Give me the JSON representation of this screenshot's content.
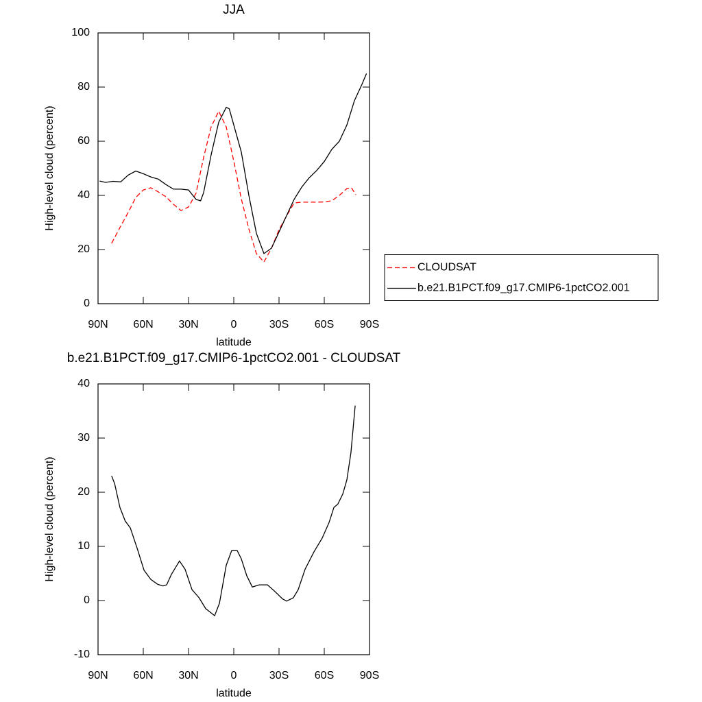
{
  "chart_data": [
    {
      "type": "line",
      "title": "JJA",
      "xlabel": "latitude",
      "ylabel": "High-level cloud (percent)",
      "xlim": [
        90,
        -90
      ],
      "xticks": [
        {
          "value": 90,
          "label": "90N"
        },
        {
          "value": 60,
          "label": "60N"
        },
        {
          "value": 30,
          "label": "30N"
        },
        0,
        {
          "value": -30,
          "label": "30S"
        },
        {
          "value": -60,
          "label": "60S"
        },
        {
          "value": -90,
          "label": "90S"
        }
      ],
      "ylim": [
        0,
        100
      ],
      "yticks": [
        0,
        20,
        40,
        60,
        80,
        100
      ],
      "legend": "right",
      "series": [
        {
          "name": "CLOUDSAT",
          "color": "#ff0000",
          "dash": "dashed",
          "x": [
            81,
            75,
            70,
            65,
            60,
            55,
            50,
            45,
            40,
            35,
            30,
            25,
            20,
            15,
            10,
            5,
            0,
            -5,
            -10,
            -15,
            -20,
            -25,
            -30,
            -35,
            -40,
            -45,
            -50,
            -55,
            -60,
            -65,
            -70,
            -75,
            -78,
            -81
          ],
          "values": [
            22.3,
            28.6,
            33.7,
            39.2,
            42,
            42.8,
            41.3,
            39.5,
            36.7,
            34.4,
            35.7,
            40.8,
            54,
            65.3,
            71.1,
            65.3,
            52.7,
            38.7,
            27.6,
            18.5,
            15.4,
            20.5,
            27.3,
            32.4,
            37.2,
            37.5,
            37.5,
            37.5,
            37.6,
            38,
            40,
            42.5,
            42.8,
            40.2
          ]
        },
        {
          "name": "b.e21.B1PCT.f09_g17.CMIP6-1pctCO2.001",
          "color": "#000000",
          "dash": "solid",
          "x": [
            89,
            85,
            80,
            75,
            70,
            65,
            60,
            55,
            50,
            45,
            40,
            35,
            30,
            25,
            22,
            20,
            15,
            10,
            5,
            3,
            0,
            -5,
            -10,
            -15,
            -20,
            -25,
            -30,
            -35,
            -40,
            -45,
            -50,
            -55,
            -60,
            -65,
            -70,
            -75,
            -80,
            -85,
            -88
          ],
          "values": [
            45.3,
            44.8,
            45.2,
            45,
            47.5,
            49,
            48,
            46.8,
            46,
            44,
            42.3,
            42.3,
            42,
            38.5,
            38,
            41,
            55,
            67,
            72.5,
            72,
            66,
            56,
            40,
            26,
            18.5,
            20.5,
            26.5,
            32.5,
            38.5,
            43,
            46.5,
            49.2,
            52.5,
            57,
            60,
            66,
            75,
            81,
            85
          ]
        }
      ]
    },
    {
      "type": "line",
      "title": "b.e21.B1PCT.f09_g17.CMIP6-1pctCO2.001 - CLOUDSAT",
      "xlabel": "latitude",
      "ylabel": "High-level cloud (percent)",
      "xlim": [
        90,
        -90
      ],
      "xticks": [
        {
          "value": 90,
          "label": "90N"
        },
        {
          "value": 60,
          "label": "60N"
        },
        {
          "value": 30,
          "label": "30N"
        },
        0,
        {
          "value": -30,
          "label": "30S"
        },
        {
          "value": -60,
          "label": "60S"
        },
        {
          "value": -90,
          "label": "90S"
        }
      ],
      "ylim": [
        -10,
        40
      ],
      "yticks": [
        -10,
        0,
        10,
        20,
        30,
        40
      ],
      "series": [
        {
          "color": "#000000",
          "dash": "solid",
          "x": [
            81,
            79,
            75.5,
            72,
            68.6,
            64,
            59.5,
            55,
            50.5,
            47,
            44.5,
            41.4,
            36,
            32.3,
            27.7,
            23,
            18.6,
            12.7,
            9.5,
            5,
            1.4,
            -2.3,
            -5,
            -8.6,
            -12.3,
            -16.8,
            -22.3,
            -26.8,
            -32.3,
            -35,
            -39.5,
            -42.7,
            -47.3,
            -53.2,
            -58.6,
            -63.2,
            -66.4,
            -69,
            -72.3,
            -75,
            -77.7,
            -80.5
          ],
          "values": [
            23,
            21.6,
            17.2,
            14.7,
            13.4,
            9.6,
            5.6,
            3.9,
            3,
            2.7,
            2.9,
            4.8,
            7.3,
            5.8,
            2,
            0.5,
            -1.5,
            -2.8,
            -0.5,
            6.5,
            9.2,
            9.2,
            7.7,
            4.6,
            2.5,
            2.9,
            2.9,
            1.8,
            0.3,
            -0.1,
            0.5,
            2,
            5.8,
            9,
            11.5,
            14.4,
            17.2,
            17.8,
            19.7,
            22.3,
            27.3,
            36
          ]
        }
      ]
    }
  ]
}
